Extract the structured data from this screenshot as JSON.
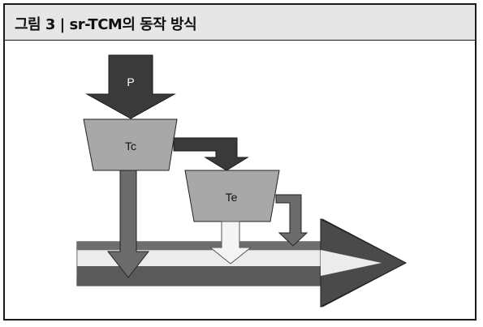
{
  "figure": {
    "title": "그림 3 | sr-TCM의 동작 방식"
  },
  "diagram": {
    "nodes": {
      "p_label": "P",
      "tc_label": "Tc",
      "te_label": "Te"
    }
  },
  "colors": {
    "title_bg": "#e6e6e6",
    "dark_arrow": "#3a3a3a",
    "mid_arrow": "#6b6b6b",
    "bucket_fill": "#a8a8a8",
    "light_stripe": "#ececec",
    "lightest_arrow": "#f4f4f4"
  }
}
